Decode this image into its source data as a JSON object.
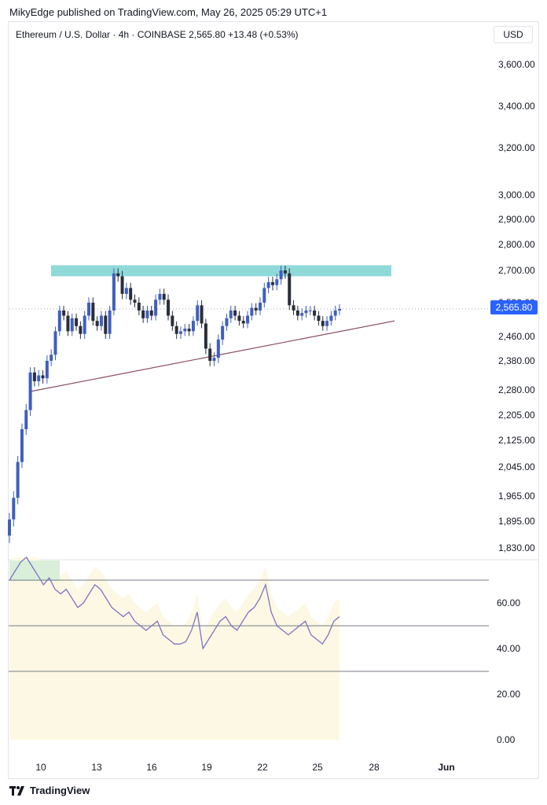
{
  "header": {
    "published_by": "MikyEdge published on TradingView.com, May 26, 2025 05:29 UTC+1",
    "symbol_line": "Ethereum / U.S. Dollar · 4h · COINBASE  2,565.80  +13.48 (+0.53%)",
    "currency": "USD"
  },
  "footer": {
    "brand": "TradingView",
    "logo_icon": "tradingview-logo-icon"
  },
  "colors": {
    "up": "#3f5fbf",
    "down": "#2a2e39",
    "zone": "#8fd9d9",
    "trendline": "#8a4a5a",
    "rsi_line": "#7e72c2",
    "last_price": "#2962ff"
  },
  "chart_data": [
    {
      "type": "candlestick",
      "symbol": "Ethereum / U.S. Dollar",
      "interval": "4h",
      "exchange": "COINBASE",
      "last_price": 2565.8,
      "last_price_label": "2,565.80",
      "change": "+13.48 (+0.53%)",
      "y_ticks": [
        3600,
        3400,
        3200,
        3000,
        2900,
        2800,
        2700,
        2590,
        2460,
        2380,
        2280,
        2205,
        2125,
        2045,
        1965,
        1895,
        1830
      ],
      "y_tick_labels": [
        "3,600.00",
        "3,400.00",
        "3,200.00",
        "3,000.00",
        "2,900.00",
        "2,800.00",
        "2,700.00",
        "2,590.00",
        "2,460.00",
        "2,380.00",
        "2,280.00",
        "2,205.00",
        "2,125.00",
        "2,045.00",
        "1,965.00",
        "1,895.00",
        "1,830.00"
      ],
      "x_labels": [
        "10",
        "13",
        "16",
        "19",
        "22",
        "25",
        "28",
        "Jun"
      ],
      "resistance_zone": [
        2680,
        2720
      ],
      "trendline": [
        {
          "x": "May 9",
          "y": 2275
        },
        {
          "x": "May 28",
          "y": 2520
        }
      ],
      "series_close": [
        1900,
        1960,
        2060,
        2160,
        2220,
        2340,
        2310,
        2330,
        2320,
        2380,
        2400,
        2480,
        2560,
        2540,
        2480,
        2530,
        2500,
        2470,
        2540,
        2590,
        2520,
        2500,
        2540,
        2470,
        2560,
        2690,
        2680,
        2620,
        2640,
        2600,
        2590,
        2560,
        2530,
        2560,
        2540,
        2600,
        2620,
        2600,
        2540,
        2500,
        2470,
        2480,
        2490,
        2480,
        2520,
        2580,
        2510,
        2420,
        2380,
        2390,
        2450,
        2500,
        2530,
        2560,
        2540,
        2520,
        2510,
        2540,
        2570,
        2560,
        2590,
        2640,
        2660,
        2650,
        2670,
        2700,
        2690,
        2580,
        2560,
        2540,
        2550,
        2560,
        2560,
        2540,
        2520,
        2500,
        2520,
        2540,
        2560,
        2565.8
      ]
    },
    {
      "type": "line",
      "name": "RSI",
      "y_ticks": [
        0,
        20,
        40,
        60
      ],
      "y_tick_labels": [
        "0.00",
        "20.00",
        "40.00",
        "60.00"
      ],
      "bands": [
        70,
        50,
        30
      ],
      "values": [
        70,
        74,
        78,
        80,
        76,
        72,
        68,
        71,
        66,
        64,
        66,
        62,
        58,
        60,
        64,
        68,
        66,
        62,
        58,
        56,
        54,
        56,
        52,
        50,
        48,
        50,
        52,
        46,
        44,
        42,
        42,
        43,
        48,
        56,
        40,
        44,
        48,
        52,
        54,
        50,
        48,
        52,
        56,
        58,
        62,
        68,
        56,
        50,
        48,
        46,
        48,
        50,
        52,
        46,
        44,
        42,
        46,
        52,
        54
      ]
    }
  ]
}
